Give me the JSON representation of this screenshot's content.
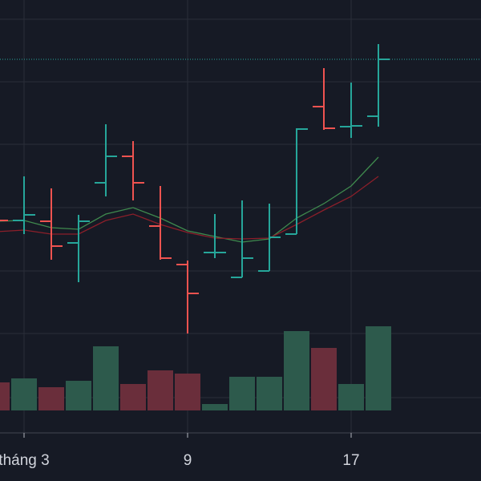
{
  "chart_data": {
    "type": "ohlc",
    "categories": [
      null,
      "tháng 3",
      null,
      null,
      null,
      null,
      null,
      "9",
      null,
      null,
      null,
      null,
      null,
      "17",
      null
    ],
    "open": [
      268,
      265,
      264,
      237,
      312,
      345,
      258,
      210,
      225,
      194,
      202,
      248,
      407,
      382,
      395
    ],
    "high": [
      272,
      320,
      305,
      272,
      385,
      364,
      308,
      215,
      273,
      290,
      286,
      380,
      455,
      437,
      485
    ],
    "low": [
      260,
      248,
      216,
      188,
      295,
      290,
      216,
      124,
      218,
      194,
      202,
      248,
      378,
      368,
      382
    ],
    "close": [
      265,
      272,
      233,
      264,
      345,
      312,
      218,
      174,
      225,
      218,
      244,
      379,
      380,
      383,
      466
    ],
    "volume": [
      35,
      40,
      29,
      37,
      80,
      33,
      50,
      46,
      8,
      42,
      42,
      99,
      78,
      33,
      105
    ],
    "ma": [
      {
        "color": "#3f8a4e",
        "values": [
          264,
          265,
          256,
          254,
          273,
          281,
          268,
          252,
          245,
          238,
          242,
          268,
          286,
          308,
          344
        ]
      },
      {
        "color": "#8c1f2a",
        "values": [
          251,
          253,
          248,
          248,
          265,
          273,
          260,
          250,
          243,
          242,
          243,
          260,
          278,
          295,
          320
        ]
      }
    ],
    "ylim": [
      0,
      540
    ],
    "grid_y": [
      516,
      438,
      360,
      281,
      202,
      124,
      44
    ],
    "grid": true,
    "up_color": "#26a69a",
    "down_color": "#ef5350",
    "volume_up_color": "#2d5a4c",
    "volume_down_color": "#6a2e3b",
    "last_price_line": true,
    "background": "#161a25",
    "grid_color": "#2a2e39"
  }
}
